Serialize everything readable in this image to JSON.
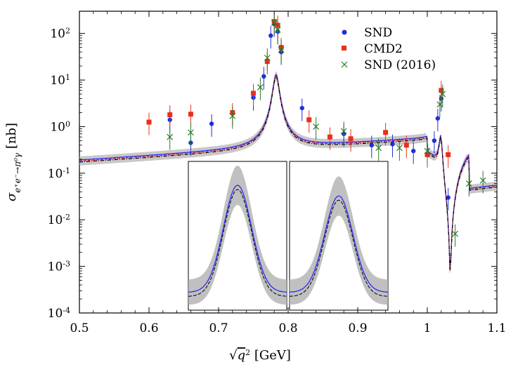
{
  "chart_data": {
    "type": "scatter",
    "title": "",
    "xlabel": "√q² [GeV]",
    "xlabel_sqrt": "√",
    "xlabel_var": "q",
    "xlabel_exp": "2",
    "xlabel_unit": " [GeV]",
    "ylabel": "σ e⁺e⁻→π⁰γ [nb]",
    "ylabel_sigma": "σ",
    "ylabel_sub": "e⁺e⁻→π⁰γ",
    "ylabel_unit": " [nb]",
    "xlim": [
      0.5,
      1.1
    ],
    "ylim": [
      0.0001,
      300
    ],
    "yscale": "log",
    "x_ticks": [
      "0.5",
      "0.6",
      "0.7",
      "0.8",
      "0.9",
      "1",
      "1.1"
    ],
    "x_tick_values": [
      0.5,
      0.6,
      0.7,
      0.8,
      0.9,
      1.0,
      1.1
    ],
    "y_ticks": [
      {
        "mant": "10",
        "exp": "-4",
        "value": 0.0001
      },
      {
        "mant": "10",
        "exp": "-3",
        "value": 0.001
      },
      {
        "mant": "10",
        "exp": "-2",
        "value": 0.01
      },
      {
        "mant": "10",
        "exp": "-1",
        "value": 0.1
      },
      {
        "mant": "10",
        "exp": "0",
        "value": 1
      },
      {
        "mant": "10",
        "exp": "1",
        "value": 10
      },
      {
        "mant": "10",
        "exp": "2",
        "value": 100
      }
    ],
    "legend_position": "top-right",
    "colors": {
      "SND": "#1f2fd6",
      "CMD2": "#e8301c",
      "SND2016": "#2a7a2a",
      "band": "#b0b0b0",
      "curve_black": "#000000",
      "curve_blue": "#2020ff",
      "curve_red": "#e02030"
    },
    "series": [
      {
        "name": "SND",
        "marker": "circle",
        "color": "#1f2fd6",
        "points": [
          {
            "x": 0.63,
            "y": 1.4
          },
          {
            "x": 0.66,
            "y": 0.45
          },
          {
            "x": 0.69,
            "y": 1.15
          },
          {
            "x": 0.75,
            "y": 4.2
          },
          {
            "x": 0.765,
            "y": 12
          },
          {
            "x": 0.775,
            "y": 90
          },
          {
            "x": 0.78,
            "y": 160
          },
          {
            "x": 0.785,
            "y": 110
          },
          {
            "x": 0.79,
            "y": 40
          },
          {
            "x": 0.82,
            "y": 2.5
          },
          {
            "x": 0.88,
            "y": 0.7
          },
          {
            "x": 0.92,
            "y": 0.4
          },
          {
            "x": 0.95,
            "y": 0.42
          },
          {
            "x": 0.98,
            "y": 0.3
          },
          {
            "x": 1.01,
            "y": 0.5
          },
          {
            "x": 1.015,
            "y": 1.5
          },
          {
            "x": 1.02,
            "y": 4
          },
          {
            "x": 1.03,
            "y": 0.03
          }
        ]
      },
      {
        "name": "CMD2",
        "marker": "square",
        "color": "#e8301c",
        "points": [
          {
            "x": 0.6,
            "y": 1.25
          },
          {
            "x": 0.63,
            "y": 1.8
          },
          {
            "x": 0.66,
            "y": 1.85
          },
          {
            "x": 0.72,
            "y": 2.0
          },
          {
            "x": 0.75,
            "y": 5.2
          },
          {
            "x": 0.77,
            "y": 25
          },
          {
            "x": 0.78,
            "y": 180
          },
          {
            "x": 0.785,
            "y": 150
          },
          {
            "x": 0.79,
            "y": 50
          },
          {
            "x": 0.83,
            "y": 1.4
          },
          {
            "x": 0.86,
            "y": 0.6
          },
          {
            "x": 0.89,
            "y": 0.55
          },
          {
            "x": 0.94,
            "y": 0.75
          },
          {
            "x": 0.97,
            "y": 0.4
          },
          {
            "x": 1.0,
            "y": 0.25
          },
          {
            "x": 1.02,
            "y": 6
          },
          {
            "x": 1.03,
            "y": 0.25
          }
        ]
      },
      {
        "name": "SND (2016)",
        "marker": "x",
        "color": "#2a7a2a",
        "points": [
          {
            "x": 0.63,
            "y": 0.6
          },
          {
            "x": 0.66,
            "y": 0.75
          },
          {
            "x": 0.72,
            "y": 1.7
          },
          {
            "x": 0.76,
            "y": 7
          },
          {
            "x": 0.77,
            "y": 30
          },
          {
            "x": 0.78,
            "y": 170
          },
          {
            "x": 0.785,
            "y": 120
          },
          {
            "x": 0.79,
            "y": 45
          },
          {
            "x": 0.84,
            "y": 1.0
          },
          {
            "x": 0.88,
            "y": 0.8
          },
          {
            "x": 0.93,
            "y": 0.35
          },
          {
            "x": 0.96,
            "y": 0.35
          },
          {
            "x": 1.0,
            "y": 0.3
          },
          {
            "x": 1.018,
            "y": 3
          },
          {
            "x": 1.022,
            "y": 5
          },
          {
            "x": 1.04,
            "y": 0.005
          },
          {
            "x": 1.06,
            "y": 0.06
          },
          {
            "x": 1.08,
            "y": 0.07
          }
        ]
      }
    ]
  },
  "legend": [
    {
      "label": "SND",
      "marker": "circle",
      "color": "#1f2fd6"
    },
    {
      "label": "CMD2",
      "marker": "square",
      "color": "#e8301c"
    },
    {
      "label": "SND (2016)",
      "marker": "x",
      "color": "#2a7a2a"
    }
  ]
}
